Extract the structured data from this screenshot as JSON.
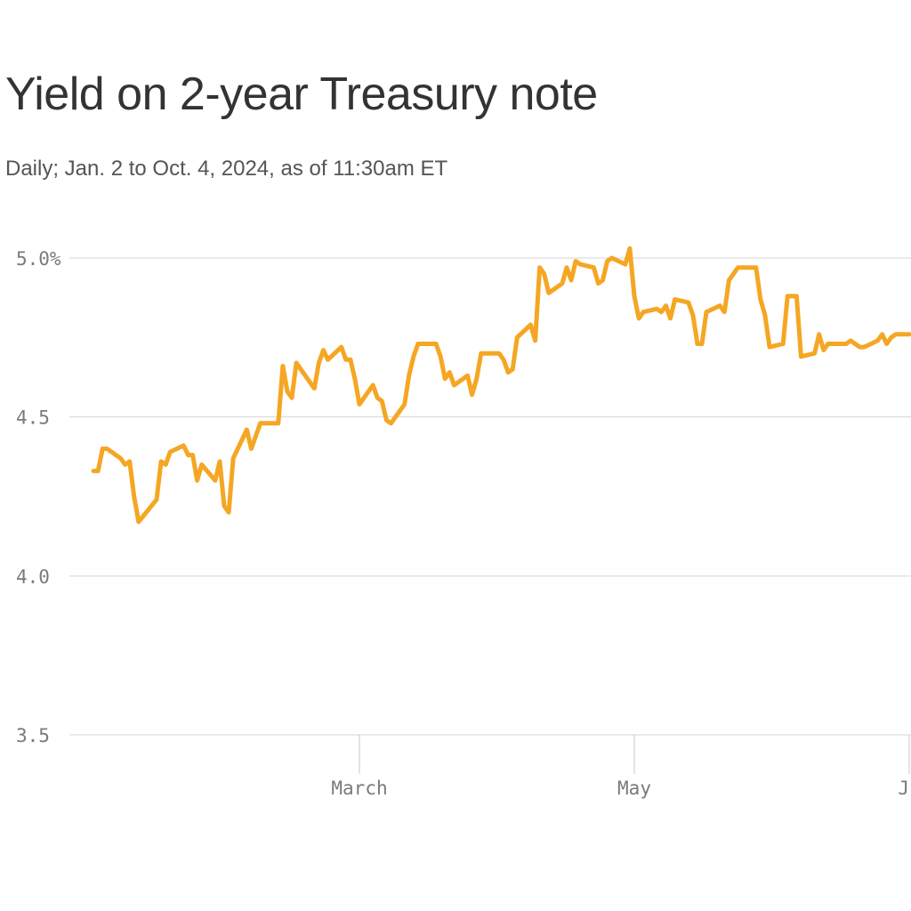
{
  "chart_data": {
    "type": "line",
    "title": "Yield on 2-year Treasury note",
    "subtitle": "Daily; Jan. 2 to Oct. 4, 2024, as of 11:30am ET",
    "xlabel": "",
    "ylabel": "",
    "ylim": [
      3.5,
      5.0
    ],
    "yticks": [
      {
        "value": 5.0,
        "label": "5.0%"
      },
      {
        "value": 4.5,
        "label": "4.5"
      },
      {
        "value": 4.0,
        "label": "4.0"
      },
      {
        "value": 3.5,
        "label": "3.5"
      }
    ],
    "xticks": [
      {
        "value": "2024-03-01",
        "label": "March"
      },
      {
        "value": "2024-05-01",
        "label": "May"
      },
      {
        "value": "2024-07-01",
        "label": "Ju"
      }
    ],
    "grid": true,
    "color": "#f5a623",
    "series": [
      {
        "name": "",
        "x": [
          "2024-01-02",
          "2024-01-03",
          "2024-01-04",
          "2024-01-05",
          "2024-01-08",
          "2024-01-09",
          "2024-01-10",
          "2024-01-11",
          "2024-01-12",
          "2024-01-16",
          "2024-01-17",
          "2024-01-18",
          "2024-01-19",
          "2024-01-22",
          "2024-01-23",
          "2024-01-24",
          "2024-01-25",
          "2024-01-26",
          "2024-01-29",
          "2024-01-30",
          "2024-01-31",
          "2024-02-01",
          "2024-02-02",
          "2024-02-05",
          "2024-02-06",
          "2024-02-07",
          "2024-02-08",
          "2024-02-09",
          "2024-02-12",
          "2024-02-13",
          "2024-02-14",
          "2024-02-15",
          "2024-02-16",
          "2024-02-20",
          "2024-02-21",
          "2024-02-22",
          "2024-02-23",
          "2024-02-26",
          "2024-02-27",
          "2024-02-28",
          "2024-02-29",
          "2024-03-01",
          "2024-03-04",
          "2024-03-05",
          "2024-03-06",
          "2024-03-07",
          "2024-03-08",
          "2024-03-11",
          "2024-03-12",
          "2024-03-13",
          "2024-03-14",
          "2024-03-15",
          "2024-03-18",
          "2024-03-19",
          "2024-03-20",
          "2024-03-21",
          "2024-03-22",
          "2024-03-25",
          "2024-03-26",
          "2024-03-27",
          "2024-03-28",
          "2024-04-01",
          "2024-04-02",
          "2024-04-03",
          "2024-04-04",
          "2024-04-05",
          "2024-04-08",
          "2024-04-09",
          "2024-04-10",
          "2024-04-11",
          "2024-04-12",
          "2024-04-15",
          "2024-04-16",
          "2024-04-17",
          "2024-04-18",
          "2024-04-19",
          "2024-04-22",
          "2024-04-23",
          "2024-04-24",
          "2024-04-25",
          "2024-04-26",
          "2024-04-29",
          "2024-04-30",
          "2024-05-01",
          "2024-05-02",
          "2024-05-03",
          "2024-05-06",
          "2024-05-07",
          "2024-05-08",
          "2024-05-09",
          "2024-05-10",
          "2024-05-13",
          "2024-05-14",
          "2024-05-15",
          "2024-05-16",
          "2024-05-17",
          "2024-05-20",
          "2024-05-21",
          "2024-05-22",
          "2024-05-23",
          "2024-05-24",
          "2024-05-28",
          "2024-05-29",
          "2024-05-30",
          "2024-05-31",
          "2024-06-03",
          "2024-06-04",
          "2024-06-05",
          "2024-06-06",
          "2024-06-07",
          "2024-06-10",
          "2024-06-11",
          "2024-06-12",
          "2024-06-13",
          "2024-06-14",
          "2024-06-17",
          "2024-06-18",
          "2024-06-20",
          "2024-06-21",
          "2024-06-24",
          "2024-06-25",
          "2024-06-26",
          "2024-06-27",
          "2024-06-28",
          "2024-07-01"
        ],
        "values": [
          4.33,
          4.33,
          4.4,
          4.4,
          4.37,
          4.35,
          4.36,
          4.25,
          4.17,
          4.24,
          4.36,
          4.35,
          4.39,
          4.41,
          4.38,
          4.38,
          4.3,
          4.35,
          4.3,
          4.36,
          4.22,
          4.2,
          4.37,
          4.46,
          4.4,
          4.44,
          4.48,
          4.48,
          4.48,
          4.66,
          4.58,
          4.56,
          4.67,
          4.59,
          4.67,
          4.71,
          4.68,
          4.72,
          4.68,
          4.68,
          4.62,
          4.54,
          4.6,
          4.56,
          4.55,
          4.49,
          4.48,
          4.54,
          4.63,
          4.69,
          4.73,
          4.73,
          4.73,
          4.69,
          4.62,
          4.64,
          4.6,
          4.63,
          4.57,
          4.62,
          4.7,
          4.7,
          4.68,
          4.64,
          4.65,
          4.75,
          4.79,
          4.74,
          4.97,
          4.95,
          4.89,
          4.92,
          4.97,
          4.93,
          4.99,
          4.98,
          4.97,
          4.92,
          4.93,
          4.99,
          5.0,
          4.98,
          5.03,
          4.88,
          4.81,
          4.83,
          4.84,
          4.83,
          4.85,
          4.81,
          4.87,
          4.86,
          4.82,
          4.73,
          4.73,
          4.83,
          4.85,
          4.83,
          4.93,
          4.95,
          4.97,
          4.97,
          4.87,
          4.82,
          4.72,
          4.73,
          4.88,
          4.88,
          4.88,
          4.69,
          4.7,
          4.76,
          4.71,
          4.73,
          4.73,
          4.73,
          4.74,
          4.72,
          4.72,
          4.74,
          4.76,
          4.73,
          4.75,
          4.76,
          4.76
        ]
      }
    ]
  }
}
